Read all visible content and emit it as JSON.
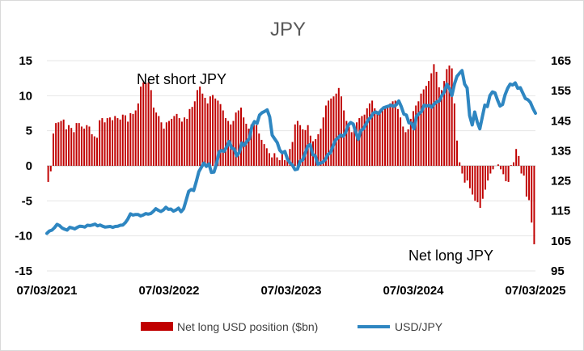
{
  "chart_data": {
    "type": "bar+line",
    "title": "JPY",
    "left_axis": {
      "ylim": [
        -15,
        15
      ],
      "ticks": [
        15,
        10,
        5,
        0,
        -5,
        -10,
        -15
      ]
    },
    "right_axis": {
      "ylim": [
        95,
        165
      ],
      "ticks": [
        165,
        155,
        145,
        135,
        125,
        115,
        105,
        95
      ]
    },
    "x_ticks": [
      "07/03/2021",
      "07/03/2022",
      "07/03/2023",
      "07/03/2024",
      "07/03/2025"
    ],
    "annotations": {
      "net_short": "Net short JPY",
      "net_long": "Net long JPY"
    },
    "legend": {
      "bar_label": "Net long USD position ($bn)",
      "line_label": "USD/JPY"
    },
    "colors": {
      "bar": "#c00000",
      "line": "#2e86c1"
    },
    "series": [
      {
        "name": "Net long USD position ($bn)",
        "axis": "left",
        "kind": "bar",
        "values": [
          -2.3,
          -0.8,
          4.6,
          6.1,
          6.2,
          6.4,
          6.6,
          5.2,
          5.8,
          5.4,
          4.8,
          6.1,
          6.1,
          5.6,
          5.3,
          5.8,
          5.6,
          4.5,
          4.2,
          4.0,
          6.5,
          6.8,
          6.2,
          6.8,
          6.9,
          6.5,
          7.1,
          6.8,
          6.6,
          7.3,
          7.2,
          6.3,
          7.5,
          7.4,
          7.9,
          8.9,
          11.3,
          11.9,
          11.8,
          11.9,
          10.8,
          8.3,
          7.6,
          7.1,
          6.2,
          5.3,
          6.2,
          6.4,
          6.7,
          7.1,
          7.4,
          6.8,
          6.3,
          6.9,
          6.7,
          8.1,
          8.4,
          9.2,
          10.8,
          11.3,
          10.3,
          9.7,
          8.9,
          9.9,
          10.1,
          9.6,
          9.3,
          8.8,
          7.9,
          6.8,
          6.4,
          5.9,
          6.4,
          7.6,
          7.9,
          8.3,
          6.9,
          6.0,
          5.3,
          5.9,
          6.2,
          5.8,
          4.6,
          3.7,
          3.1,
          2.5,
          1.8,
          1.2,
          1.8,
          1.2,
          0.8,
          1.9,
          0.8,
          1.4,
          2.4,
          3.4,
          5.9,
          6.4,
          5.8,
          5.2,
          5.1,
          5.8,
          4.3,
          3.5,
          3.8,
          4.5,
          5.3,
          6.9,
          8.6,
          9.3,
          9.6,
          9.9,
          10.3,
          11.1,
          9.9,
          7.9,
          6.4,
          5.6,
          4.8,
          5.3,
          6.2,
          6.8,
          7.1,
          7.3,
          8.2,
          8.9,
          9.3,
          8.2,
          7.8,
          7.6,
          7.9,
          8.2,
          8.6,
          8.9,
          9.2,
          9.3,
          8.1,
          6.9,
          5.6,
          4.8,
          5.2,
          6.7,
          7.8,
          8.6,
          9.2,
          10.3,
          10.9,
          11.4,
          12.1,
          13.2,
          14.5,
          13.4,
          11.2,
          10.8,
          12.1,
          13.8,
          14.3,
          13.9,
          8.9,
          3.6,
          0.5,
          -1.1,
          -2.4,
          -2.1,
          -3.2,
          -4.1,
          -5.0,
          -5.2,
          -6.0,
          -4.7,
          -3.4,
          -2.1,
          -1.1,
          -0.5,
          0.0,
          0.2,
          -0.5,
          -1.2,
          -2.2,
          -2.3,
          0.1,
          0.5,
          2.4,
          1.4,
          -1.1,
          -1.4,
          -4.4,
          -4.9,
          -8.1,
          -11.2
        ]
      },
      {
        "name": "USD/JPY",
        "axis": "right",
        "kind": "line",
        "values": [
          107.5,
          108.3,
          108.6,
          109.4,
          110.5,
          110.1,
          109.3,
          108.9,
          108.6,
          109.5,
          109.3,
          109.0,
          109.5,
          109.9,
          109.8,
          109.6,
          110.2,
          110.1,
          110.3,
          110.6,
          110.0,
          110.3,
          109.9,
          109.6,
          109.7,
          109.8,
          109.5,
          109.8,
          109.9,
          110.2,
          110.3,
          111.1,
          112.3,
          114.0,
          113.6,
          113.8,
          113.8,
          113.3,
          113.6,
          114.1,
          113.9,
          114.1,
          114.8,
          115.7,
          115.2,
          114.8,
          115.3,
          116.2,
          115.5,
          115.6,
          114.9,
          115.3,
          115.9,
          114.7,
          115.7,
          118.5,
          121.5,
          122.1,
          121.8,
          124.7,
          128.0,
          129.5,
          130.9,
          129.8,
          130.6,
          127.8,
          127.9,
          130.7,
          134.6,
          135.1,
          134.8,
          136.3,
          138.1,
          135.9,
          135.6,
          133.3,
          134.4,
          137.6,
          136.8,
          138.1,
          139.1,
          143.2,
          144.7,
          144.1,
          146.9,
          147.7,
          148.1,
          148.6,
          146.3,
          140.2,
          138.9,
          137.7,
          135.2,
          134.3,
          134.8,
          132.3,
          131.0,
          130.2,
          128.7,
          128.9,
          131.5,
          131.9,
          134.1,
          136.5,
          137.1,
          133.7,
          133.4,
          130.5,
          130.9,
          131.2,
          132.1,
          133.8,
          134.3,
          136.5,
          138.6,
          139.3,
          140.2,
          139.8,
          141.1,
          143.5,
          144.4,
          143.9,
          141.2,
          138.8,
          141.7,
          142.3,
          143.8,
          145.4,
          146.2,
          147.6,
          147.9,
          147.3,
          148.5,
          149.3,
          149.6,
          149.9,
          150.2,
          149.8,
          150.3,
          151.6,
          149.7,
          147.2,
          146.9,
          144.3,
          144.2,
          142.3,
          146.5,
          147.3,
          148.1,
          150.2,
          149.9,
          150.1,
          149.5,
          150.6,
          151.3,
          151.6,
          153.4,
          154.6,
          157.2,
          155.8,
          153.4,
          157.3,
          159.8,
          160.8,
          161.7,
          157.2,
          155.9,
          146.7,
          143.6,
          147.9,
          144.6,
          142.3,
          146.3,
          150.2,
          149.7,
          153.4,
          154.6,
          154.3,
          151.9,
          149.9,
          150.4,
          153.6,
          155.8,
          157.2,
          156.9,
          157.6,
          155.8,
          156.0,
          154.2,
          152.4,
          152.0,
          151.1,
          149.1,
          147.5
        ]
      }
    ]
  }
}
